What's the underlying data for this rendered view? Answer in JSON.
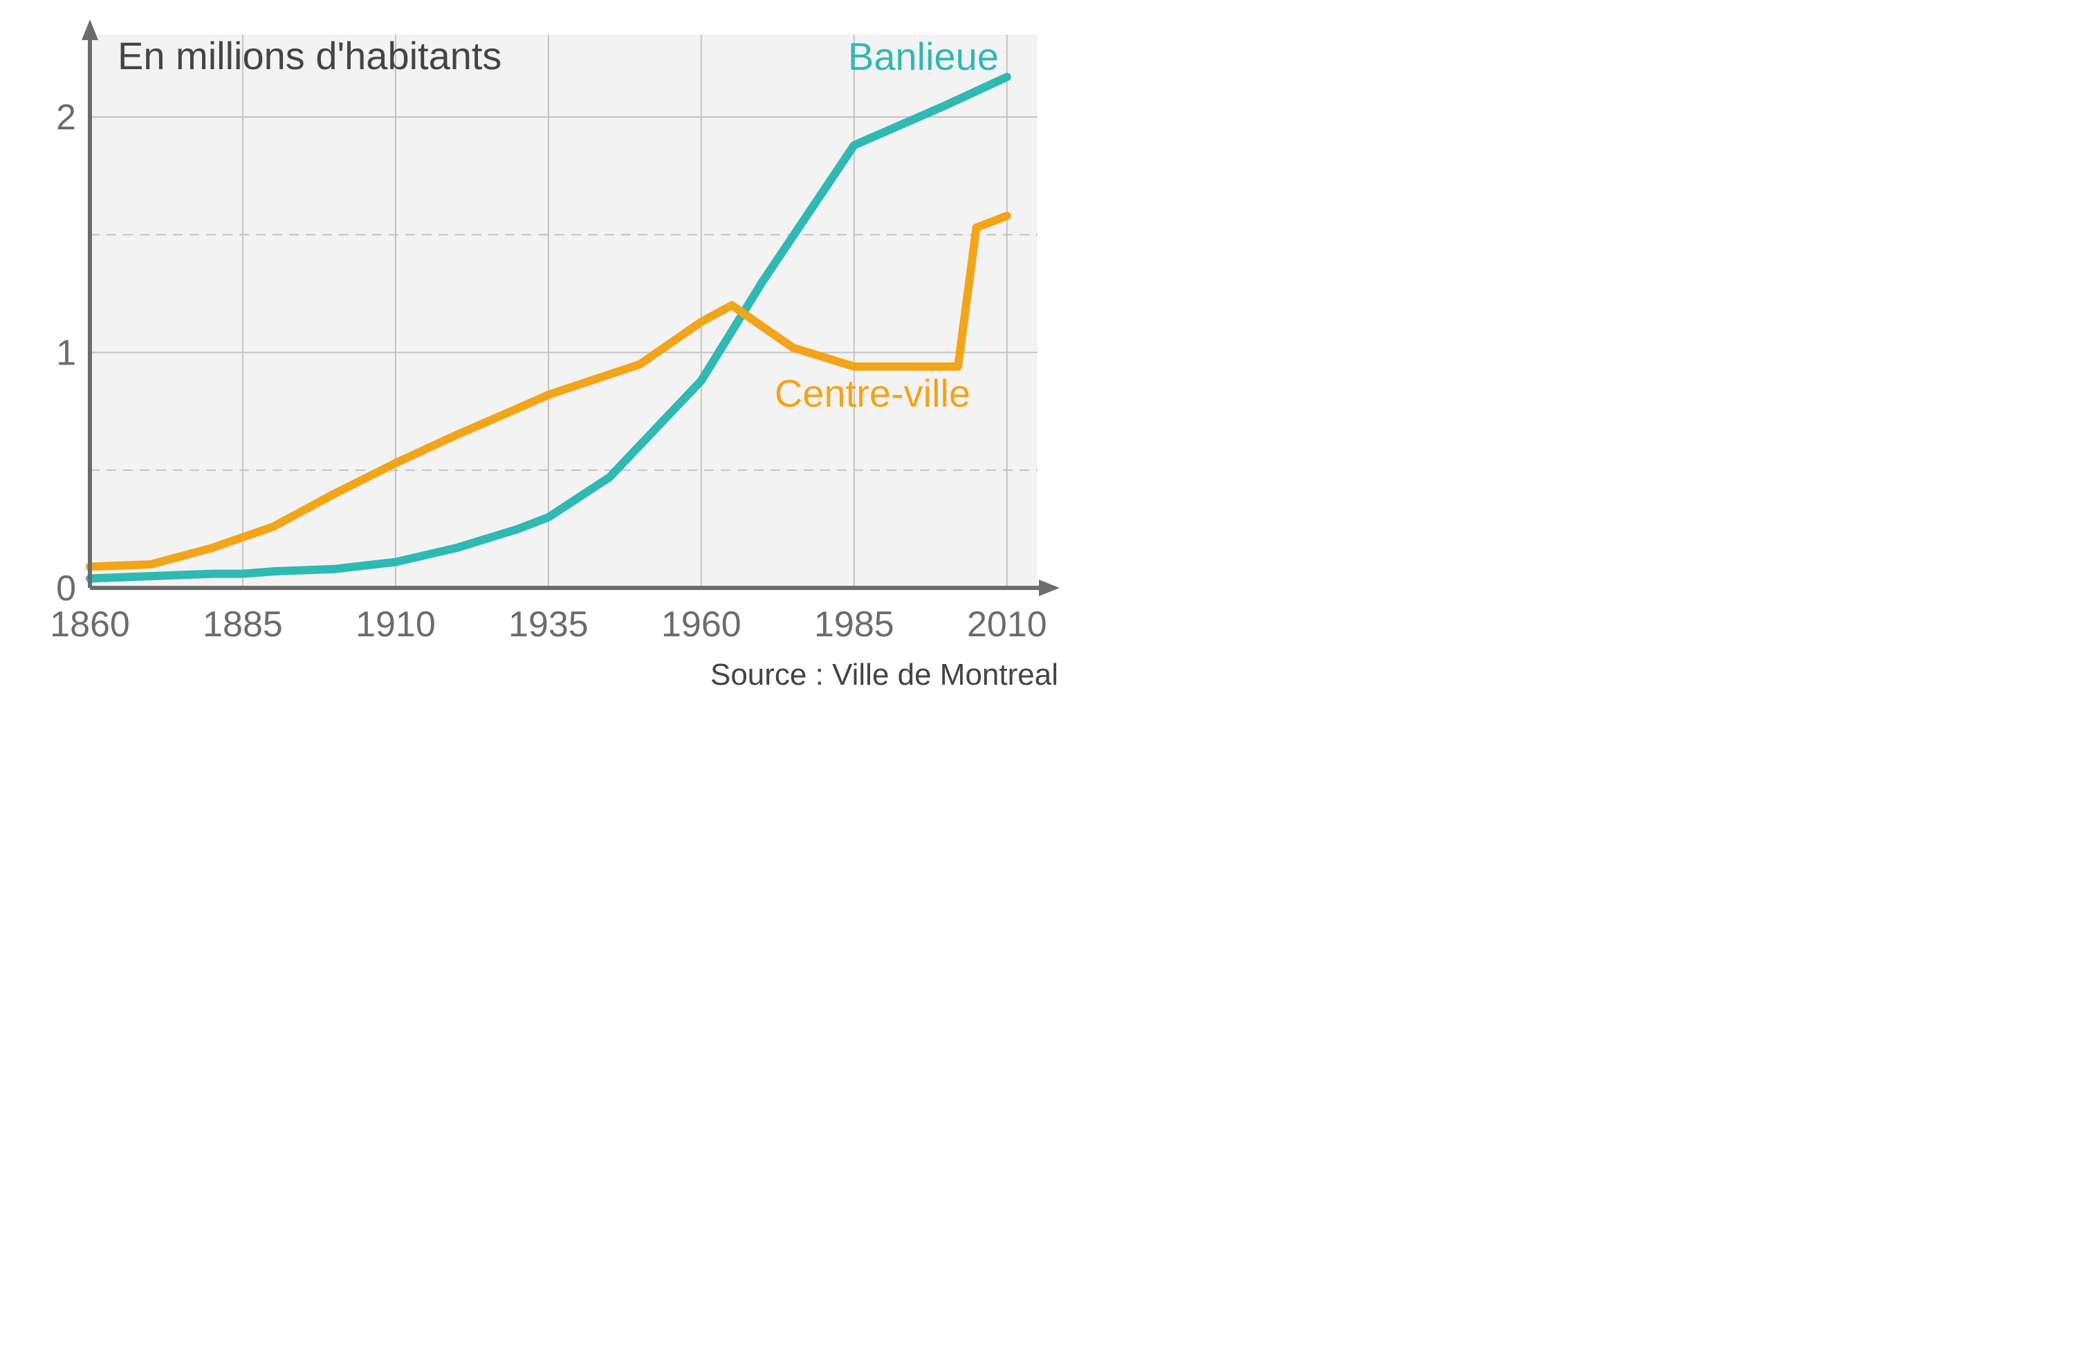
{
  "chart": {
    "type": "line",
    "title": "En millions d'habitants",
    "title_fontsize": 56,
    "source": "Source : Ville de Montreal",
    "source_fontsize": 44,
    "background_color": "#ffffff",
    "plot_background_color": "#f3f3f3",
    "axis_color": "#6c6c6c",
    "grid_color": "#c3c3c3",
    "text_color": "#6c6c6c",
    "xlim": [
      1860,
      2015
    ],
    "ylim": [
      0,
      2.35
    ],
    "xticks": [
      1860,
      1885,
      1910,
      1935,
      1960,
      1985,
      2010
    ],
    "yticks": [
      0,
      1,
      2
    ],
    "y_grid_solid": [
      1,
      2
    ],
    "y_grid_dashed": [
      0.5,
      1.5
    ],
    "line_width": 12,
    "series": [
      {
        "name": "Banlieue",
        "label": "Banlieue",
        "color": "#2fb9b3",
        "label_x": 1984,
        "label_y": 2.2,
        "x": [
          1860,
          1870,
          1880,
          1885,
          1890,
          1900,
          1910,
          1920,
          1930,
          1935,
          1945,
          1960,
          1970,
          1985,
          2000,
          2010
        ],
        "y": [
          0.04,
          0.05,
          0.06,
          0.06,
          0.07,
          0.08,
          0.11,
          0.17,
          0.25,
          0.3,
          0.47,
          0.88,
          1.3,
          1.88,
          2.05,
          2.17
        ]
      },
      {
        "name": "Centre-ville",
        "label": "Centre-ville",
        "color": "#f2a518",
        "label_x": 1972,
        "label_y": 0.77,
        "x": [
          1860,
          1870,
          1880,
          1890,
          1900,
          1910,
          1920,
          1928,
          1935,
          1950,
          1960,
          1965,
          1975,
          1985,
          2002,
          2005,
          2010
        ],
        "y": [
          0.09,
          0.1,
          0.17,
          0.26,
          0.4,
          0.53,
          0.65,
          0.74,
          0.82,
          0.95,
          1.13,
          1.2,
          1.02,
          0.94,
          0.94,
          1.53,
          1.58
        ]
      }
    ]
  }
}
